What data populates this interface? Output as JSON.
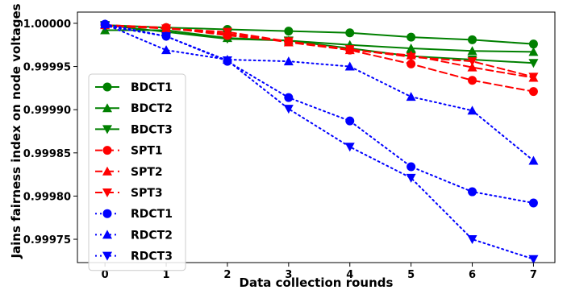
{
  "chart_data": {
    "type": "line",
    "xlabel": "Data collection rounds",
    "ylabel": "Jains fairness index on node voltages",
    "x": [
      0,
      1,
      2,
      3,
      4,
      5,
      6,
      7
    ],
    "xlim": [
      -0.45,
      7.35
    ],
    "ylim": [
      0.999723,
      1.000013
    ],
    "yticks": [
      0.99975,
      0.9998,
      0.99985,
      0.9999,
      0.99995,
      1.0
    ],
    "ytick_labels": [
      "0.99975",
      "0.99980",
      "0.99985",
      "0.99990",
      "0.99995",
      "1.00000"
    ],
    "xtick_labels": [
      "0",
      "1",
      "2",
      "3",
      "4",
      "5",
      "6",
      "7"
    ],
    "legend_position": "center-left",
    "series": [
      {
        "name": "BDCT1",
        "color": "#008000",
        "linestyle": "solid",
        "marker": "circle",
        "values": [
          0.999998,
          0.999995,
          0.999993,
          0.999991,
          0.999989,
          0.999984,
          0.999981,
          0.999976
        ]
      },
      {
        "name": "BDCT2",
        "color": "#008000",
        "linestyle": "solid",
        "marker": "triangle-up",
        "values": [
          0.999992,
          0.999992,
          0.999983,
          0.99998,
          0.999975,
          0.999971,
          0.999968,
          0.999967
        ]
      },
      {
        "name": "BDCT3",
        "color": "#008000",
        "linestyle": "solid",
        "marker": "triangle-down",
        "values": [
          0.999998,
          0.99999,
          0.999982,
          0.99998,
          0.999971,
          0.999962,
          0.999958,
          0.999954
        ]
      },
      {
        "name": "SPT1",
        "color": "#ff0000",
        "linestyle": "dashed",
        "marker": "circle",
        "values": [
          0.999998,
          0.999995,
          0.999986,
          0.999979,
          0.999969,
          0.999953,
          0.999934,
          0.999921
        ]
      },
      {
        "name": "SPT2",
        "color": "#ff0000",
        "linestyle": "dashed",
        "marker": "triangle-up",
        "values": [
          0.999998,
          0.999994,
          0.999988,
          0.999978,
          0.999969,
          0.999963,
          0.999949,
          0.999937
        ]
      },
      {
        "name": "SPT3",
        "color": "#ff0000",
        "linestyle": "dashed",
        "marker": "triangle-down",
        "values": [
          0.999997,
          0.999994,
          0.99999,
          0.999979,
          0.99997,
          0.999961,
          0.999956,
          0.999938
        ]
      },
      {
        "name": "RDCT1",
        "color": "#0000ff",
        "linestyle": "dotted",
        "marker": "circle",
        "values": [
          0.999999,
          0.999985,
          0.999956,
          0.999914,
          0.999887,
          0.999834,
          0.999805,
          0.999792
        ]
      },
      {
        "name": "RDCT2",
        "color": "#0000ff",
        "linestyle": "dotted",
        "marker": "triangle-up",
        "values": [
          0.999999,
          0.999969,
          0.999958,
          0.999956,
          0.99995,
          0.999915,
          0.999899,
          0.999841
        ]
      },
      {
        "name": "RDCT3",
        "color": "#0000ff",
        "linestyle": "dotted",
        "marker": "triangle-down",
        "values": [
          0.999997,
          0.999985,
          0.999957,
          0.999901,
          0.999857,
          0.999821,
          0.99975,
          0.999727
        ]
      }
    ]
  }
}
